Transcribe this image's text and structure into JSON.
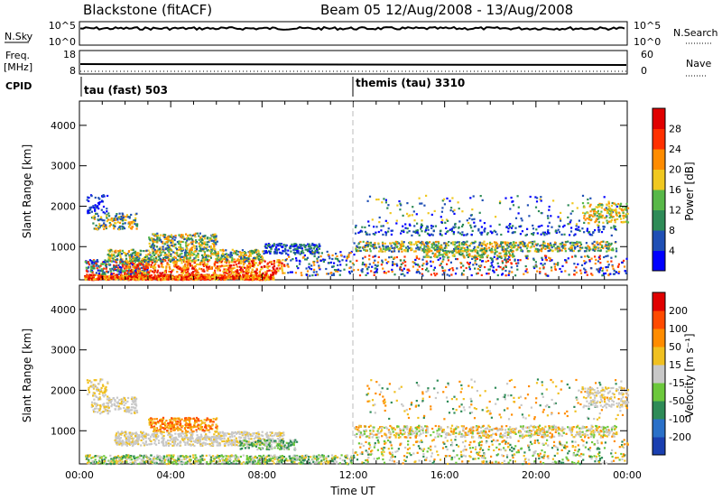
{
  "header": {
    "radar": "Blackstone (fitACF)",
    "beam_dates": "Beam 05  12/Aug/2008 - 13/Aug/2008"
  },
  "nsky_panel": {
    "label": "N.Sky",
    "right_label": "N.Search",
    "left_ticks": [
      "10^5",
      "10^0"
    ],
    "right_ticks": [
      "10^5",
      "10^0"
    ]
  },
  "freq_panel": {
    "label": "Freq.",
    "unit": "[MHz]",
    "right_label": "Nave",
    "left_ticks": [
      "18",
      "8"
    ],
    "right_ticks": [
      "60",
      "0"
    ]
  },
  "cpid_panel": {
    "label": "CPID",
    "modes": [
      {
        "name": "tau (fast) 503",
        "start_hour": 0
      },
      {
        "name": "themis (tau) 3310",
        "start_hour": 12
      }
    ]
  },
  "chart_data": [
    {
      "type": "heatmap",
      "name": "power",
      "ylabel": "Slant Range [km]",
      "xlabel": "",
      "xlim": [
        0,
        24
      ],
      "ylim": [
        180,
        4600
      ],
      "x_ticks": [
        "00:00",
        "04:00",
        "08:00",
        "12:00",
        "16:00",
        "20:00",
        "00:00"
      ],
      "y_ticks": [
        1000,
        2000,
        3000,
        4000
      ],
      "colorbar": {
        "label": "Power [dB]",
        "ticks": [
          4,
          8,
          12,
          16,
          20,
          24,
          28
        ],
        "colors": [
          "#0000ff",
          "#1f4fb5",
          "#2e8b57",
          "#58b848",
          "#f0c820",
          "#ff8c00",
          "#ff3000",
          "#e00000"
        ]
      }
    },
    {
      "type": "heatmap",
      "name": "velocity",
      "ylabel": "Slant Range [km]",
      "xlabel": "Time UT",
      "xlim": [
        0,
        24
      ],
      "ylim": [
        180,
        4600
      ],
      "x_ticks": [
        "00:00",
        "04:00",
        "08:00",
        "12:00",
        "16:00",
        "20:00",
        "00:00"
      ],
      "y_ticks": [
        1000,
        2000,
        3000,
        4000
      ],
      "colorbar": {
        "label": "Velocity [m s⁻¹]",
        "ticks": [
          "200",
          "100",
          "50",
          "15",
          "-15",
          "-50",
          "-100",
          "-200"
        ],
        "colors": [
          "#1a3fb0",
          "#2a70c8",
          "#2e8b57",
          "#6cc83c",
          "#c8c8c8",
          "#f0c020",
          "#ff8c00",
          "#ff4a00",
          "#e00000"
        ]
      }
    }
  ],
  "marker_hour": 12
}
